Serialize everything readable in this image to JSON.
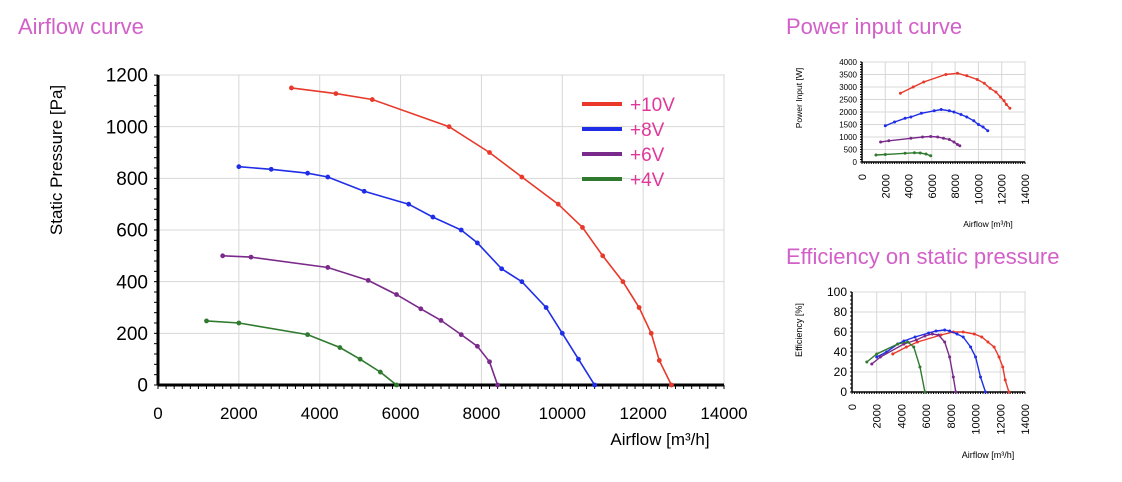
{
  "chart_data": [
    {
      "type": "line",
      "title": "Airflow curve",
      "xlabel": "Airflow [m³/h]",
      "ylabel": "Static Pressure [Pa]",
      "xlim": [
        0,
        14000
      ],
      "ylim": [
        0,
        1200
      ],
      "xticks": [
        "0",
        "2000",
        "4000",
        "6000",
        "8000",
        "10000",
        "12000",
        "14000"
      ],
      "yticks": [
        "0",
        "200",
        "400",
        "600",
        "800",
        "1000",
        "1200"
      ],
      "grid": true,
      "legend": "top-right",
      "series": [
        {
          "name": "+10V",
          "color": "#e8392a",
          "x": [
            3300,
            4400,
            5300,
            7200,
            8200,
            9000,
            9900,
            10500,
            11000,
            11500,
            11900,
            12200,
            12400,
            12700
          ],
          "y": [
            1150,
            1128,
            1105,
            1000,
            900,
            805,
            700,
            610,
            500,
            400,
            300,
            200,
            95,
            0
          ]
        },
        {
          "name": "+8V",
          "color": "#1f2ee6",
          "x": [
            2000,
            2800,
            3700,
            4200,
            5100,
            6200,
            6800,
            7500,
            7900,
            8500,
            9000,
            9600,
            10000,
            10400,
            10800
          ],
          "y": [
            845,
            835,
            820,
            805,
            750,
            700,
            650,
            600,
            550,
            450,
            400,
            300,
            200,
            100,
            0
          ]
        },
        {
          "name": "+6V",
          "color": "#7a2a8a",
          "x": [
            1600,
            2300,
            4200,
            5200,
            5900,
            6500,
            7000,
            7500,
            7900,
            8200,
            8400
          ],
          "y": [
            500,
            495,
            455,
            405,
            350,
            295,
            250,
            195,
            150,
            90,
            0
          ]
        },
        {
          "name": "+4V",
          "color": "#2f7a2f",
          "x": [
            1200,
            2000,
            3700,
            4500,
            5000,
            5500,
            5900
          ],
          "y": [
            248,
            240,
            195,
            145,
            100,
            50,
            0
          ]
        }
      ]
    },
    {
      "type": "line",
      "title": "Power input curve",
      "xlabel": "Airflow [m³/h]",
      "ylabel": "Power Input [W]",
      "xlim": [
        0,
        14000
      ],
      "ylim": [
        0,
        4000
      ],
      "xticks": [
        "0",
        "2000",
        "4000",
        "6000",
        "8000",
        "10000",
        "12000",
        "14000"
      ],
      "yticks": [
        "0",
        "500",
        "1000",
        "1500",
        "2000",
        "2500",
        "3000",
        "3500",
        "4000"
      ],
      "grid": true,
      "series": [
        {
          "color": "#e8392a",
          "x": [
            3300,
            4400,
            5300,
            7200,
            8200,
            9000,
            9900,
            10500,
            11000,
            11500,
            11900,
            12200,
            12400,
            12700
          ],
          "y": [
            2750,
            3000,
            3200,
            3500,
            3550,
            3450,
            3300,
            3150,
            2950,
            2800,
            2600,
            2450,
            2300,
            2150
          ]
        },
        {
          "color": "#1f2ee6",
          "x": [
            2000,
            2800,
            3700,
            4200,
            5100,
            6200,
            6800,
            7500,
            7900,
            8500,
            9000,
            9600,
            10000,
            10400,
            10800
          ],
          "y": [
            1450,
            1600,
            1750,
            1800,
            1950,
            2050,
            2100,
            2050,
            2000,
            1900,
            1800,
            1650,
            1500,
            1400,
            1250
          ]
        },
        {
          "color": "#7a2a8a",
          "x": [
            1600,
            2300,
            4200,
            5200,
            5900,
            6500,
            7000,
            7500,
            7900,
            8200,
            8400
          ],
          "y": [
            800,
            850,
            950,
            1000,
            1020,
            1000,
            950,
            900,
            800,
            700,
            650
          ]
        },
        {
          "color": "#2f7a2f",
          "x": [
            1200,
            2000,
            3700,
            4500,
            5000,
            5500,
            5900
          ],
          "y": [
            280,
            300,
            350,
            370,
            360,
            320,
            250
          ]
        }
      ]
    },
    {
      "type": "line",
      "title": "Efficiency on static pressure",
      "xlabel": "Airflow [m³/h]",
      "ylabel": "Efficiency [%]",
      "xlim": [
        0,
        14000
      ],
      "ylim": [
        0,
        100
      ],
      "xticks": [
        "0",
        "2000",
        "4000",
        "6000",
        "8000",
        "10000",
        "12000",
        "14000"
      ],
      "yticks": [
        "0",
        "20",
        "40",
        "60",
        "80",
        "100"
      ],
      "grid": true,
      "series": [
        {
          "color": "#e8392a",
          "x": [
            3300,
            4400,
            5300,
            7200,
            8200,
            9000,
            9900,
            10500,
            11000,
            11500,
            11900,
            12200,
            12400,
            12700
          ],
          "y": [
            38,
            45,
            50,
            57,
            60,
            60,
            58,
            55,
            50,
            45,
            35,
            25,
            12,
            0
          ]
        },
        {
          "color": "#1f2ee6",
          "x": [
            2000,
            2800,
            3700,
            4200,
            5100,
            6200,
            6800,
            7500,
            7900,
            8500,
            9000,
            9600,
            10000,
            10400,
            10800
          ],
          "y": [
            35,
            40,
            48,
            51,
            55,
            59,
            61,
            62,
            61,
            58,
            55,
            45,
            35,
            15,
            0
          ]
        },
        {
          "color": "#7a2a8a",
          "x": [
            1600,
            2300,
            4200,
            5200,
            5900,
            6500,
            7000,
            7500,
            7900,
            8200,
            8400
          ],
          "y": [
            28,
            35,
            48,
            52,
            56,
            58,
            57,
            50,
            35,
            15,
            0
          ]
        },
        {
          "color": "#2f7a2f",
          "x": [
            1200,
            2000,
            3700,
            4500,
            5000,
            5500,
            5900
          ],
          "y": [
            30,
            38,
            48,
            50,
            45,
            25,
            0
          ]
        }
      ]
    }
  ]
}
